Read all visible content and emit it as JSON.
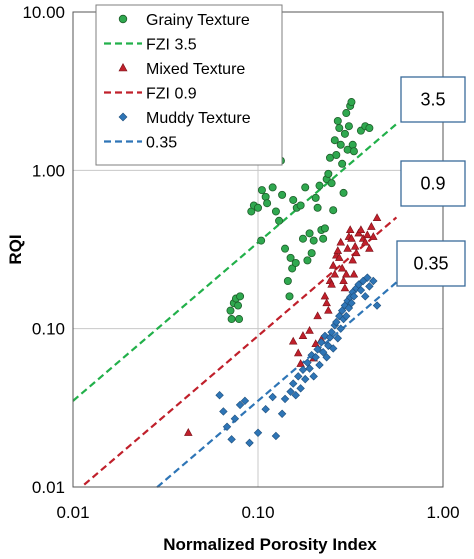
{
  "chart_data": {
    "type": "scatter",
    "title": "",
    "xlabel": "Normalized Porosity Index",
    "ylabel": "RQI",
    "xscale": "log",
    "yscale": "log",
    "xlim": [
      0.01,
      1.0
    ],
    "ylim": [
      0.01,
      10.0
    ],
    "x_ticks": [
      0.01,
      0.1,
      1.0
    ],
    "x_tick_labels": [
      "0.01",
      "0.10",
      "1.00"
    ],
    "y_ticks": [
      0.01,
      0.1,
      1.0,
      10.0
    ],
    "y_tick_labels": [
      "0.01",
      "0.10",
      "1.00",
      "10.00"
    ],
    "grid": "vertical and horizontal at decades",
    "legend_placement": "top-left",
    "series": [
      {
        "name": "Grainy Texture",
        "kind": "points",
        "marker": "circle",
        "color": "#2fa84f",
        "points": [
          [
            0.071,
            0.13
          ],
          [
            0.072,
            0.115
          ],
          [
            0.074,
            0.145
          ],
          [
            0.076,
            0.155
          ],
          [
            0.078,
            0.14
          ],
          [
            0.079,
            0.115
          ],
          [
            0.08,
            0.16
          ],
          [
            0.092,
            0.55
          ],
          [
            0.095,
            0.6
          ],
          [
            0.1,
            0.58
          ],
          [
            0.104,
            0.36
          ],
          [
            0.105,
            0.75
          ],
          [
            0.11,
            0.68
          ],
          [
            0.112,
            0.62
          ],
          [
            0.12,
            0.78
          ],
          [
            0.125,
            0.55
          ],
          [
            0.13,
            0.48
          ],
          [
            0.133,
            1.15
          ],
          [
            0.135,
            0.7
          ],
          [
            0.14,
            0.32
          ],
          [
            0.145,
            0.2
          ],
          [
            0.148,
            0.16
          ],
          [
            0.15,
            0.28
          ],
          [
            0.153,
            0.24
          ],
          [
            0.155,
            0.65
          ],
          [
            0.16,
            0.26
          ],
          [
            0.162,
            0.58
          ],
          [
            0.17,
            0.6
          ],
          [
            0.175,
            0.37
          ],
          [
            0.18,
            0.78
          ],
          [
            0.185,
            0.27
          ],
          [
            0.19,
            0.4
          ],
          [
            0.195,
            0.3
          ],
          [
            0.2,
            0.36
          ],
          [
            0.205,
            0.67
          ],
          [
            0.21,
            0.58
          ],
          [
            0.215,
            0.8
          ],
          [
            0.22,
            0.42
          ],
          [
            0.225,
            0.37
          ],
          [
            0.23,
            0.43
          ],
          [
            0.235,
            0.88
          ],
          [
            0.24,
            0.95
          ],
          [
            0.245,
            1.2
          ],
          [
            0.25,
            0.83
          ],
          [
            0.255,
            0.56
          ],
          [
            0.26,
            1.55
          ],
          [
            0.265,
            1.25
          ],
          [
            0.27,
            2.05
          ],
          [
            0.275,
            1.85
          ],
          [
            0.28,
            1.45
          ],
          [
            0.285,
            1.1
          ],
          [
            0.29,
            0.72
          ],
          [
            0.295,
            1.7
          ],
          [
            0.3,
            2.3
          ],
          [
            0.305,
            1.35
          ],
          [
            0.31,
            1.9
          ],
          [
            0.315,
            2.55
          ],
          [
            0.32,
            2.7
          ],
          [
            0.325,
            1.45
          ],
          [
            0.33,
            1.32
          ],
          [
            0.36,
            1.78
          ],
          [
            0.38,
            1.9
          ],
          [
            0.4,
            1.85
          ]
        ]
      },
      {
        "name": "FZI 3.5",
        "kind": "line",
        "color": "#22b04a",
        "fzi": 3.5,
        "x_range": [
          0.01,
          0.56
        ]
      },
      {
        "name": "Mixed Texture",
        "kind": "points",
        "marker": "triangle",
        "color": "#c0202b",
        "points": [
          [
            0.042,
            0.022
          ],
          [
            0.155,
            0.083
          ],
          [
            0.165,
            0.07
          ],
          [
            0.17,
            0.06
          ],
          [
            0.175,
            0.09
          ],
          [
            0.19,
            0.097
          ],
          [
            0.2,
            0.065
          ],
          [
            0.205,
            0.08
          ],
          [
            0.21,
            0.12
          ],
          [
            0.22,
            0.085
          ],
          [
            0.23,
            0.16
          ],
          [
            0.235,
            0.145
          ],
          [
            0.24,
            0.13
          ],
          [
            0.245,
            0.2
          ],
          [
            0.25,
            0.19
          ],
          [
            0.255,
            0.25
          ],
          [
            0.26,
            0.22
          ],
          [
            0.265,
            0.29
          ],
          [
            0.27,
            0.31
          ],
          [
            0.275,
            0.28
          ],
          [
            0.28,
            0.35
          ],
          [
            0.285,
            0.24
          ],
          [
            0.29,
            0.2
          ],
          [
            0.295,
            0.18
          ],
          [
            0.3,
            0.22
          ],
          [
            0.305,
            0.32
          ],
          [
            0.31,
            0.38
          ],
          [
            0.315,
            0.42
          ],
          [
            0.32,
            0.37
          ],
          [
            0.325,
            0.27
          ],
          [
            0.33,
            0.22
          ],
          [
            0.335,
            0.33
          ],
          [
            0.34,
            0.3
          ],
          [
            0.35,
            0.4
          ],
          [
            0.36,
            0.42
          ],
          [
            0.37,
            0.37
          ],
          [
            0.38,
            0.35
          ],
          [
            0.39,
            0.39
          ],
          [
            0.4,
            0.32
          ],
          [
            0.41,
            0.44
          ],
          [
            0.42,
            0.38
          ],
          [
            0.44,
            0.5
          ]
        ]
      },
      {
        "name": "FZI 0.9",
        "kind": "line",
        "color": "#c0202b",
        "fzi": 0.9,
        "x_range": [
          0.0115,
          0.56
        ]
      },
      {
        "name": "Muddy Texture",
        "kind": "points",
        "marker": "diamond",
        "color": "#2e75b6",
        "points": [
          [
            0.062,
            0.038
          ],
          [
            0.065,
            0.03
          ],
          [
            0.068,
            0.024
          ],
          [
            0.072,
            0.02
          ],
          [
            0.075,
            0.027
          ],
          [
            0.08,
            0.033
          ],
          [
            0.085,
            0.035
          ],
          [
            0.09,
            0.019
          ],
          [
            0.1,
            0.022
          ],
          [
            0.11,
            0.031
          ],
          [
            0.12,
            0.037
          ],
          [
            0.125,
            0.021
          ],
          [
            0.135,
            0.029
          ],
          [
            0.14,
            0.036
          ],
          [
            0.15,
            0.04
          ],
          [
            0.155,
            0.045
          ],
          [
            0.16,
            0.038
          ],
          [
            0.165,
            0.05
          ],
          [
            0.17,
            0.042
          ],
          [
            0.175,
            0.055
          ],
          [
            0.18,
            0.048
          ],
          [
            0.185,
            0.061
          ],
          [
            0.19,
            0.056
          ],
          [
            0.195,
            0.068
          ],
          [
            0.2,
            0.05
          ],
          [
            0.205,
            0.066
          ],
          [
            0.21,
            0.074
          ],
          [
            0.215,
            0.059
          ],
          [
            0.22,
            0.082
          ],
          [
            0.225,
            0.071
          ],
          [
            0.23,
            0.09
          ],
          [
            0.235,
            0.066
          ],
          [
            0.24,
            0.078
          ],
          [
            0.245,
            0.088
          ],
          [
            0.25,
            0.095
          ],
          [
            0.255,
            0.075
          ],
          [
            0.26,
            0.105
          ],
          [
            0.265,
            0.11
          ],
          [
            0.27,
            0.087
          ],
          [
            0.275,
            0.12
          ],
          [
            0.28,
            0.1
          ],
          [
            0.285,
            0.13
          ],
          [
            0.29,
            0.115
          ],
          [
            0.295,
            0.14
          ],
          [
            0.3,
            0.12
          ],
          [
            0.305,
            0.15
          ],
          [
            0.31,
            0.135
          ],
          [
            0.315,
            0.158
          ],
          [
            0.32,
            0.145
          ],
          [
            0.325,
            0.17
          ],
          [
            0.33,
            0.16
          ],
          [
            0.34,
            0.18
          ],
          [
            0.35,
            0.19
          ],
          [
            0.36,
            0.175
          ],
          [
            0.37,
            0.2
          ],
          [
            0.38,
            0.16
          ],
          [
            0.39,
            0.21
          ],
          [
            0.4,
            0.185
          ],
          [
            0.42,
            0.2
          ],
          [
            0.44,
            0.14
          ]
        ]
      },
      {
        "name": "0.35",
        "kind": "line",
        "color": "#2e75b6",
        "fzi": 0.35,
        "x_range": [
          0.0285,
          0.56
        ]
      }
    ],
    "annotations": [
      {
        "text": "3.5",
        "near_fzi": 3.5
      },
      {
        "text": "0.9",
        "near_fzi": 0.9
      },
      {
        "text": "0.35",
        "near_fzi": 0.35
      }
    ]
  }
}
